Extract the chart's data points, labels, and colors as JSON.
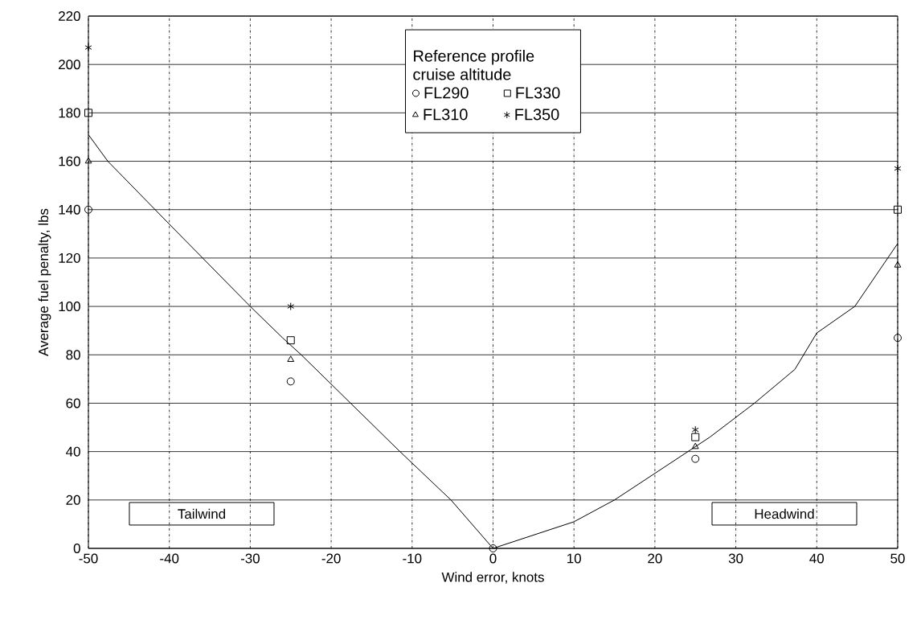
{
  "chart_data": {
    "type": "scatter",
    "xlabel": "Wind error, knots",
    "ylabel": "Average fuel penalty, lbs",
    "legend_title": "Reference profile cruise altitude",
    "xlim": [
      -50,
      50
    ],
    "ylim": [
      0,
      220
    ],
    "xticks": [
      -50,
      -40,
      -30,
      -20,
      -10,
      0,
      10,
      20,
      30,
      40,
      50
    ],
    "yticks": [
      0,
      20,
      40,
      60,
      80,
      100,
      120,
      140,
      160,
      180,
      200,
      220
    ],
    "grid": true,
    "legend": "top",
    "annotations": [
      "Tailwind",
      "Headwind"
    ],
    "series": [
      {
        "name": "FL290",
        "color": "#000000",
        "marker": "circle",
        "x": [
          -50,
          -25,
          0,
          25,
          50
        ],
        "values": [
          140,
          69,
          0,
          37,
          87
        ]
      },
      {
        "name": "FL330",
        "color": "#000000",
        "marker": "square",
        "x": [
          -50,
          -25,
          25,
          50
        ],
        "values": [
          180,
          86,
          46,
          140
        ]
      },
      {
        "name": "FL310",
        "color": "#000000",
        "marker": "triangle",
        "x": [
          -50,
          -25,
          25,
          50
        ],
        "values": [
          160,
          78,
          42,
          117
        ]
      },
      {
        "name": "FL350",
        "color": "#000000",
        "marker": "cross",
        "x": [
          -50,
          -25,
          25,
          50
        ],
        "values": [
          207,
          100,
          49,
          157
        ]
      },
      {
        "type": "line",
        "color": "#000000",
        "marker": "none",
        "line_style": "solid",
        "x": [
          -50,
          -47.6,
          -40,
          -30,
          -26,
          -23.7,
          -17.6,
          -11.5,
          -5.2,
          0,
          10,
          15,
          20,
          26.8,
          32.3,
          37.3,
          40,
          44.7,
          50
        ],
        "values": [
          171,
          160,
          134,
          100,
          87,
          80,
          60,
          40,
          20,
          0,
          11,
          20,
          31,
          46,
          60,
          74,
          89,
          100,
          126
        ]
      }
    ]
  }
}
